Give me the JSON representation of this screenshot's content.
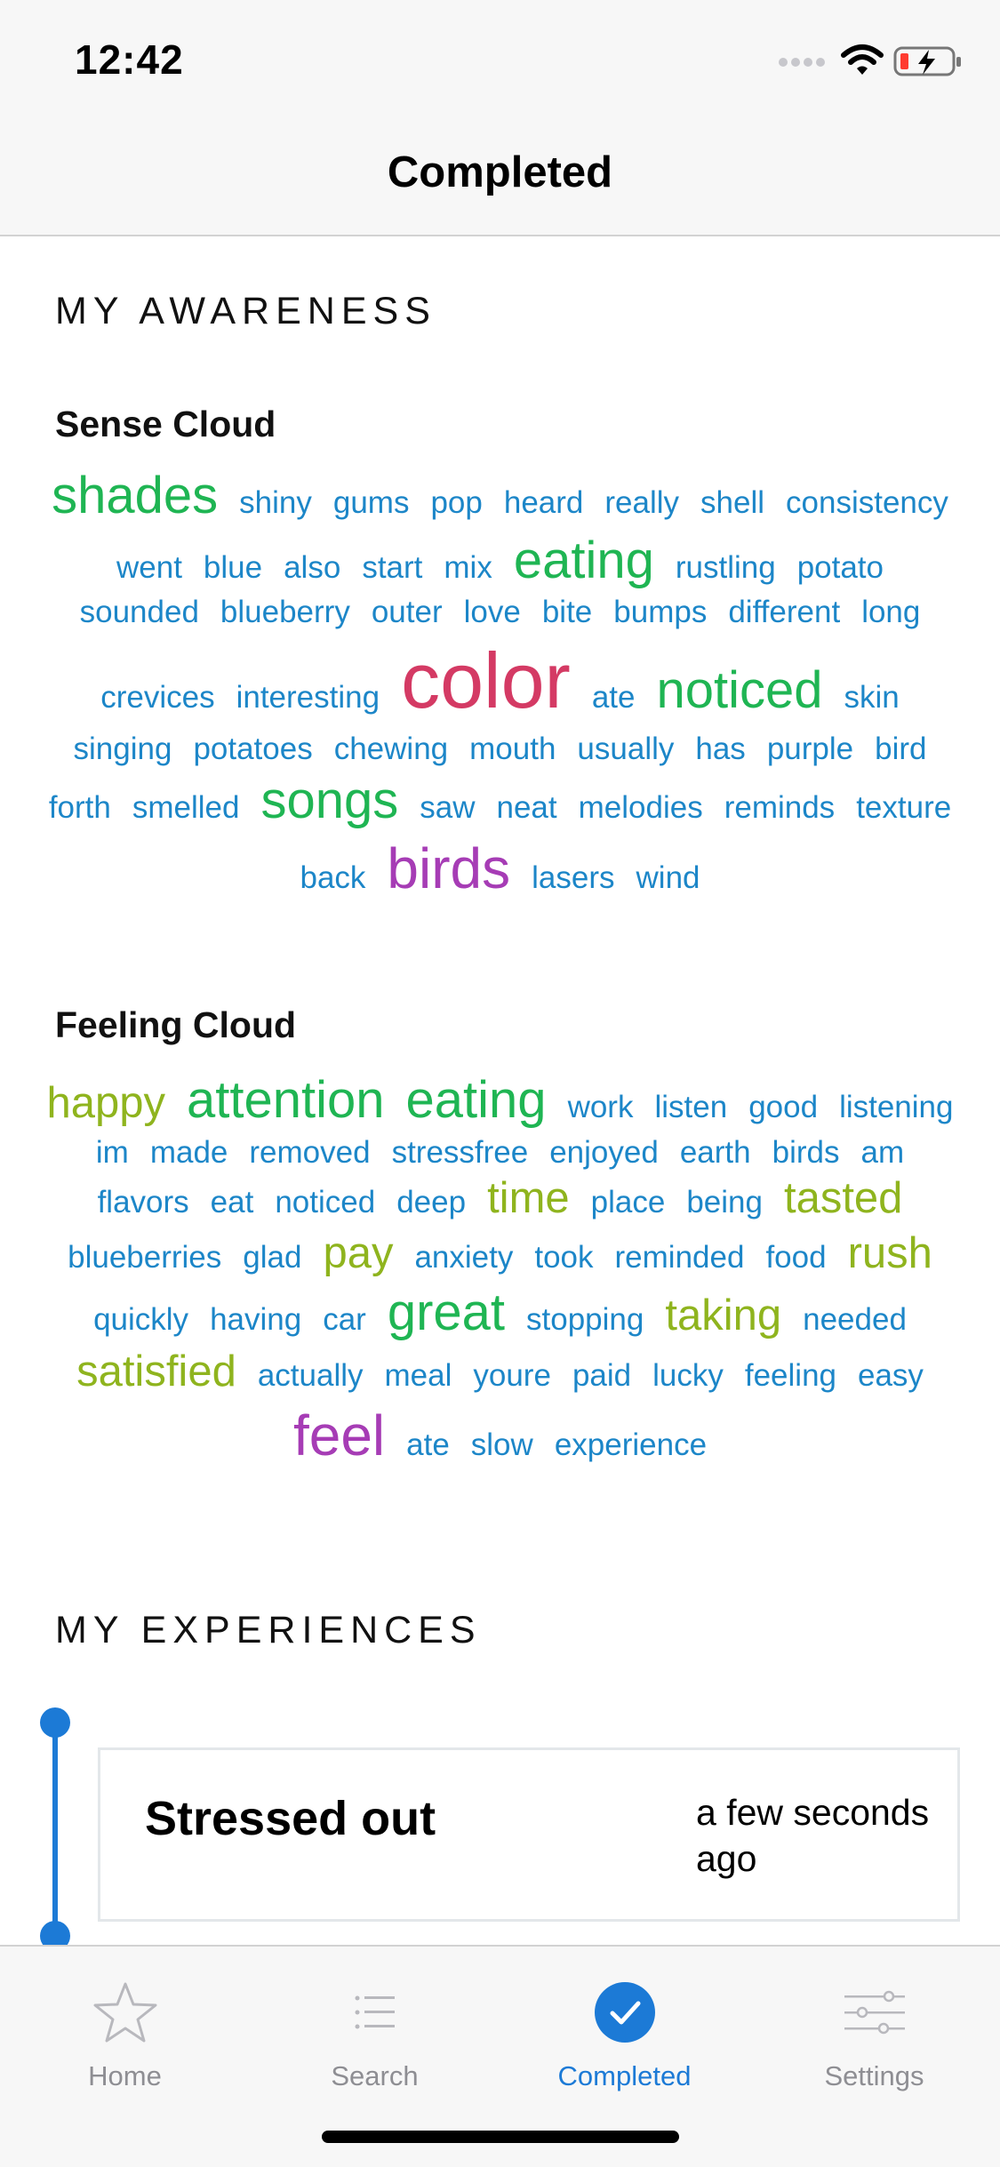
{
  "status_bar": {
    "time": "12:42"
  },
  "nav": {
    "title": "Completed"
  },
  "awareness": {
    "heading": "MY AWARENESS",
    "sense_cloud": {
      "title": "Sense Cloud",
      "words": [
        {
          "text": "shades",
          "size": 58,
          "color": "#1fb553"
        },
        {
          "text": "shiny",
          "size": 35,
          "color": "#1c86c8"
        },
        {
          "text": "gums",
          "size": 35,
          "color": "#1c86c8"
        },
        {
          "text": "pop",
          "size": 35,
          "color": "#1c86c8"
        },
        {
          "text": "heard",
          "size": 35,
          "color": "#1c86c8"
        },
        {
          "text": "really",
          "size": 35,
          "color": "#1c86c8"
        },
        {
          "text": "shell",
          "size": 35,
          "color": "#1c86c8"
        },
        {
          "text": "consistency",
          "size": 35,
          "color": "#1c86c8"
        },
        {
          "text": "went",
          "size": 35,
          "color": "#1c86c8"
        },
        {
          "text": "blue",
          "size": 35,
          "color": "#1c86c8"
        },
        {
          "text": "also",
          "size": 35,
          "color": "#1c86c8"
        },
        {
          "text": "start",
          "size": 35,
          "color": "#1c86c8"
        },
        {
          "text": "mix",
          "size": 35,
          "color": "#1c86c8"
        },
        {
          "text": "eating",
          "size": 58,
          "color": "#1fb553"
        },
        {
          "text": "rustling",
          "size": 35,
          "color": "#1c86c8"
        },
        {
          "text": "potato",
          "size": 35,
          "color": "#1c86c8"
        },
        {
          "text": "sounded",
          "size": 35,
          "color": "#1c86c8"
        },
        {
          "text": "blueberry",
          "size": 35,
          "color": "#1c86c8"
        },
        {
          "text": "outer",
          "size": 35,
          "color": "#1c86c8"
        },
        {
          "text": "love",
          "size": 35,
          "color": "#1c86c8"
        },
        {
          "text": "bite",
          "size": 35,
          "color": "#1c86c8"
        },
        {
          "text": "bumps",
          "size": 35,
          "color": "#1c86c8"
        },
        {
          "text": "different",
          "size": 35,
          "color": "#1c86c8"
        },
        {
          "text": "long",
          "size": 35,
          "color": "#1c86c8"
        },
        {
          "text": "crevices",
          "size": 35,
          "color": "#1c86c8"
        },
        {
          "text": "interesting",
          "size": 35,
          "color": "#1c86c8"
        },
        {
          "text": "color",
          "size": 88,
          "color": "#d43a64"
        },
        {
          "text": "ate",
          "size": 35,
          "color": "#1c86c8"
        },
        {
          "text": "noticed",
          "size": 58,
          "color": "#1fb553"
        },
        {
          "text": "skin",
          "size": 35,
          "color": "#1c86c8"
        },
        {
          "text": "singing",
          "size": 35,
          "color": "#1c86c8"
        },
        {
          "text": "potatoes",
          "size": 35,
          "color": "#1c86c8"
        },
        {
          "text": "chewing",
          "size": 35,
          "color": "#1c86c8"
        },
        {
          "text": "mouth",
          "size": 35,
          "color": "#1c86c8"
        },
        {
          "text": "usually",
          "size": 35,
          "color": "#1c86c8"
        },
        {
          "text": "has",
          "size": 35,
          "color": "#1c86c8"
        },
        {
          "text": "purple",
          "size": 35,
          "color": "#1c86c8"
        },
        {
          "text": "bird",
          "size": 35,
          "color": "#1c86c8"
        },
        {
          "text": "forth",
          "size": 35,
          "color": "#1c86c8"
        },
        {
          "text": "smelled",
          "size": 35,
          "color": "#1c86c8"
        },
        {
          "text": "songs",
          "size": 58,
          "color": "#1fb553"
        },
        {
          "text": "saw",
          "size": 35,
          "color": "#1c86c8"
        },
        {
          "text": "neat",
          "size": 35,
          "color": "#1c86c8"
        },
        {
          "text": "melodies",
          "size": 35,
          "color": "#1c86c8"
        },
        {
          "text": "reminds",
          "size": 35,
          "color": "#1c86c8"
        },
        {
          "text": "texture",
          "size": 35,
          "color": "#1c86c8"
        },
        {
          "text": "back",
          "size": 35,
          "color": "#1c86c8"
        },
        {
          "text": "birds",
          "size": 64,
          "color": "#a63cb5"
        },
        {
          "text": "lasers",
          "size": 35,
          "color": "#1c86c8"
        },
        {
          "text": "wind",
          "size": 35,
          "color": "#1c86c8"
        }
      ]
    },
    "feeling_cloud": {
      "title": "Feeling Cloud",
      "words": [
        {
          "text": "happy",
          "size": 49,
          "color": "#8fb41e"
        },
        {
          "text": "attention",
          "size": 58,
          "color": "#1fb553"
        },
        {
          "text": "eating",
          "size": 58,
          "color": "#1fb553"
        },
        {
          "text": "work",
          "size": 35,
          "color": "#1c86c8"
        },
        {
          "text": "listen",
          "size": 35,
          "color": "#1c86c8"
        },
        {
          "text": "good",
          "size": 35,
          "color": "#1c86c8"
        },
        {
          "text": "listening",
          "size": 35,
          "color": "#1c86c8"
        },
        {
          "text": "im",
          "size": 35,
          "color": "#1c86c8"
        },
        {
          "text": "made",
          "size": 35,
          "color": "#1c86c8"
        },
        {
          "text": "removed",
          "size": 35,
          "color": "#1c86c8"
        },
        {
          "text": "stressfree",
          "size": 35,
          "color": "#1c86c8"
        },
        {
          "text": "enjoyed",
          "size": 35,
          "color": "#1c86c8"
        },
        {
          "text": "earth",
          "size": 35,
          "color": "#1c86c8"
        },
        {
          "text": "birds",
          "size": 35,
          "color": "#1c86c8"
        },
        {
          "text": "am",
          "size": 35,
          "color": "#1c86c8"
        },
        {
          "text": "flavors",
          "size": 35,
          "color": "#1c86c8"
        },
        {
          "text": "eat",
          "size": 35,
          "color": "#1c86c8"
        },
        {
          "text": "noticed",
          "size": 35,
          "color": "#1c86c8"
        },
        {
          "text": "deep",
          "size": 35,
          "color": "#1c86c8"
        },
        {
          "text": "time",
          "size": 49,
          "color": "#8fb41e"
        },
        {
          "text": "place",
          "size": 35,
          "color": "#1c86c8"
        },
        {
          "text": "being",
          "size": 35,
          "color": "#1c86c8"
        },
        {
          "text": "tasted",
          "size": 49,
          "color": "#8fb41e"
        },
        {
          "text": "blueberries",
          "size": 35,
          "color": "#1c86c8"
        },
        {
          "text": "glad",
          "size": 35,
          "color": "#1c86c8"
        },
        {
          "text": "pay",
          "size": 49,
          "color": "#8fb41e"
        },
        {
          "text": "anxiety",
          "size": 35,
          "color": "#1c86c8"
        },
        {
          "text": "took",
          "size": 35,
          "color": "#1c86c8"
        },
        {
          "text": "reminded",
          "size": 35,
          "color": "#1c86c8"
        },
        {
          "text": "food",
          "size": 35,
          "color": "#1c86c8"
        },
        {
          "text": "rush",
          "size": 49,
          "color": "#8fb41e"
        },
        {
          "text": "quickly",
          "size": 35,
          "color": "#1c86c8"
        },
        {
          "text": "having",
          "size": 35,
          "color": "#1c86c8"
        },
        {
          "text": "car",
          "size": 35,
          "color": "#1c86c8"
        },
        {
          "text": "great",
          "size": 58,
          "color": "#1fb553"
        },
        {
          "text": "stopping",
          "size": 35,
          "color": "#1c86c8"
        },
        {
          "text": "taking",
          "size": 49,
          "color": "#8fb41e"
        },
        {
          "text": "needed",
          "size": 35,
          "color": "#1c86c8"
        },
        {
          "text": "satisfied",
          "size": 49,
          "color": "#8fb41e"
        },
        {
          "text": "actually",
          "size": 35,
          "color": "#1c86c8"
        },
        {
          "text": "meal",
          "size": 35,
          "color": "#1c86c8"
        },
        {
          "text": "youre",
          "size": 35,
          "color": "#1c86c8"
        },
        {
          "text": "paid",
          "size": 35,
          "color": "#1c86c8"
        },
        {
          "text": "lucky",
          "size": 35,
          "color": "#1c86c8"
        },
        {
          "text": "feeling",
          "size": 35,
          "color": "#1c86c8"
        },
        {
          "text": "easy",
          "size": 35,
          "color": "#1c86c8"
        },
        {
          "text": "feel",
          "size": 64,
          "color": "#a63cb5"
        },
        {
          "text": "ate",
          "size": 35,
          "color": "#1c86c8"
        },
        {
          "text": "slow",
          "size": 35,
          "color": "#1c86c8"
        },
        {
          "text": "experience",
          "size": 35,
          "color": "#1c86c8"
        }
      ]
    }
  },
  "experiences": {
    "heading": "MY EXPERIENCES",
    "items": [
      {
        "title": "Stressed out",
        "time": "a few seconds ago"
      }
    ]
  },
  "tab_bar": {
    "accent": "#1c7ad6",
    "tabs": [
      {
        "label": "Home",
        "icon": "star-icon",
        "active": false
      },
      {
        "label": "Search",
        "icon": "list-icon",
        "active": false
      },
      {
        "label": "Completed",
        "icon": "checkmark-circle-icon",
        "active": true
      },
      {
        "label": "Settings",
        "icon": "sliders-icon",
        "active": false
      }
    ]
  }
}
